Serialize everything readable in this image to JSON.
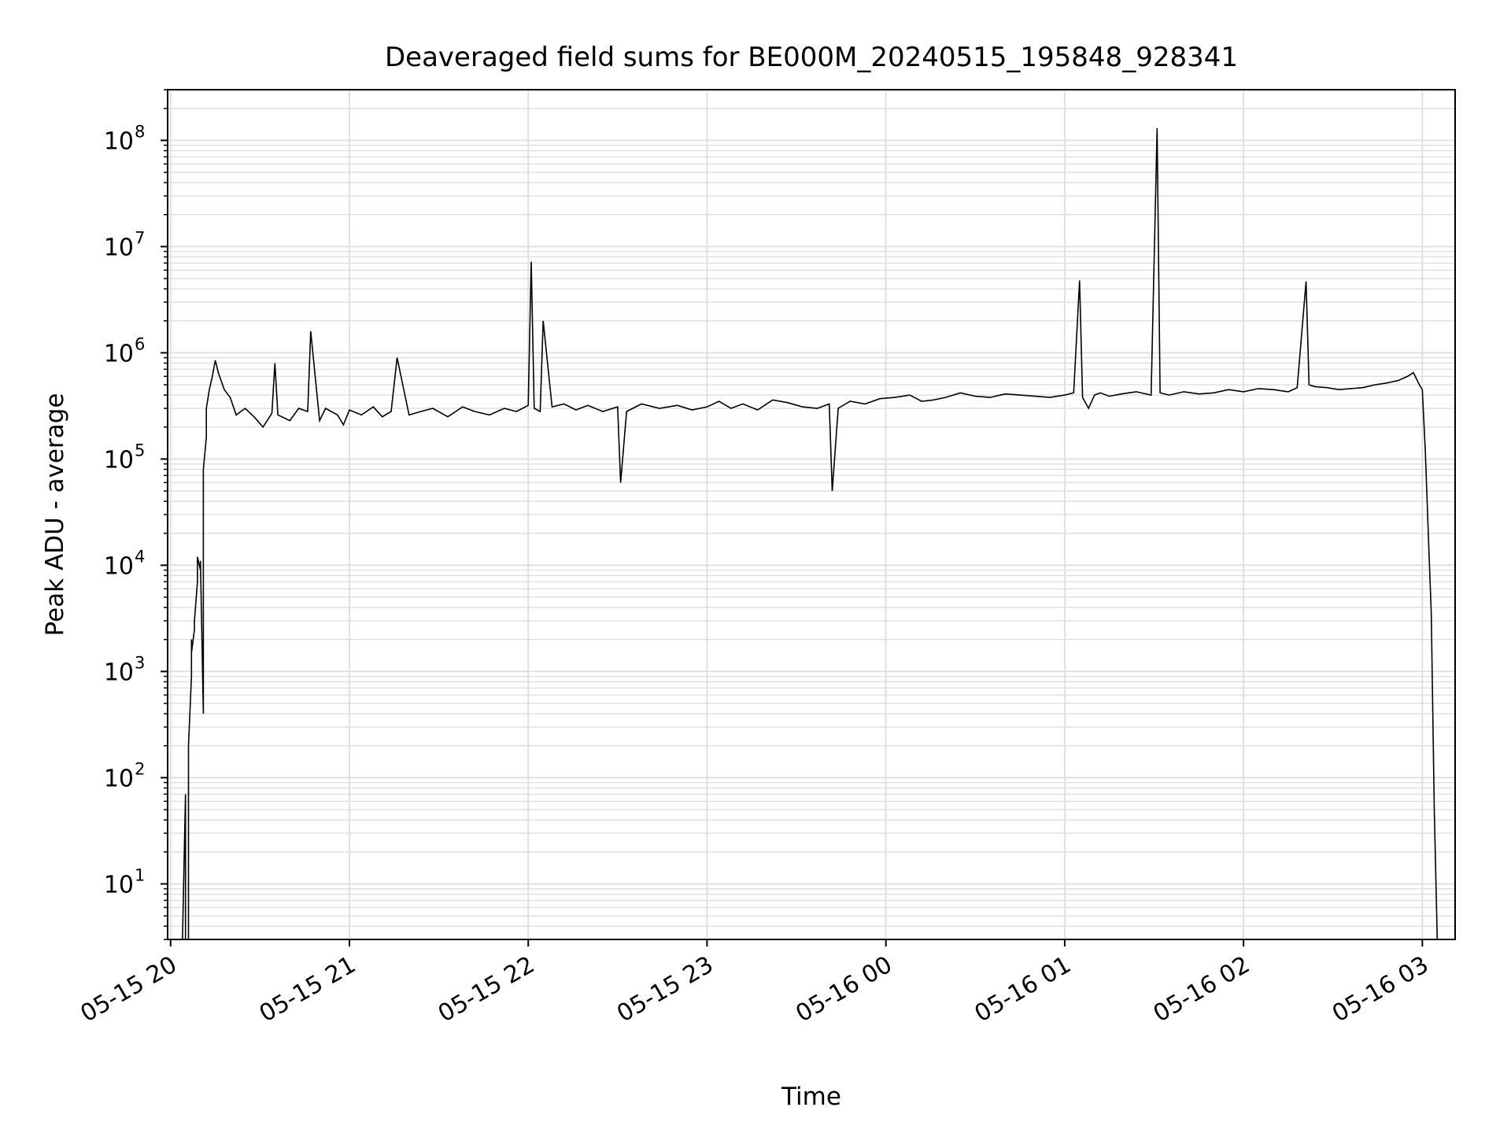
{
  "chart_data": {
    "type": "line",
    "title": "Deaveraged field sums for BE000M_20240515_195848_928341",
    "xlabel": "Time",
    "ylabel": "Peak ADU - average",
    "x_scale": "time",
    "y_scale": "log",
    "xlim": [
      "2024-05-15 19:59",
      "2024-05-16 03:11"
    ],
    "ylim": [
      3,
      300000000
    ],
    "x_ticks": [
      {
        "t": "2024-05-15 20:00",
        "label": "05-15 20"
      },
      {
        "t": "2024-05-15 21:00",
        "label": "05-15 21"
      },
      {
        "t": "2024-05-15 22:00",
        "label": "05-15 22"
      },
      {
        "t": "2024-05-15 23:00",
        "label": "05-15 23"
      },
      {
        "t": "2024-05-16 00:00",
        "label": "05-16 00"
      },
      {
        "t": "2024-05-16 01:00",
        "label": "05-16 01"
      },
      {
        "t": "2024-05-16 02:00",
        "label": "05-16 02"
      },
      {
        "t": "2024-05-16 03:00",
        "label": "05-16 03"
      }
    ],
    "y_ticks": [
      {
        "value": 10,
        "base": "10",
        "exp": "1"
      },
      {
        "value": 100,
        "base": "10",
        "exp": "2"
      },
      {
        "value": 1000,
        "base": "10",
        "exp": "3"
      },
      {
        "value": 10000,
        "base": "10",
        "exp": "4"
      },
      {
        "value": 100000,
        "base": "10",
        "exp": "5"
      },
      {
        "value": 1000000,
        "base": "10",
        "exp": "6"
      },
      {
        "value": 10000000,
        "base": "10",
        "exp": "7"
      },
      {
        "value": 100000000,
        "base": "10",
        "exp": "8"
      }
    ],
    "grid": true,
    "line_color": "#000000",
    "grid_color": "#e0e0e0",
    "series": [
      {
        "x": [
          "2024-05-15 20:04",
          "2024-05-15 20:05",
          "2024-05-15 20:05",
          "2024-05-15 20:06",
          "2024-05-15 20:06",
          "2024-05-15 20:07",
          "2024-05-15 20:07",
          "2024-05-15 20:07",
          "2024-05-15 20:08",
          "2024-05-15 20:08",
          "2024-05-15 20:09",
          "2024-05-15 20:09",
          "2024-05-15 20:10",
          "2024-05-15 20:10",
          "2024-05-15 20:11",
          "2024-05-15 20:11",
          "2024-05-15 20:11",
          "2024-05-15 20:12",
          "2024-05-15 20:12",
          "2024-05-15 20:13",
          "2024-05-15 20:14",
          "2024-05-15 20:15",
          "2024-05-15 20:16",
          "2024-05-15 20:18",
          "2024-05-15 20:20",
          "2024-05-15 20:22",
          "2024-05-15 20:25",
          "2024-05-15 20:28",
          "2024-05-15 20:31",
          "2024-05-15 20:34",
          "2024-05-15 20:35",
          "2024-05-15 20:36",
          "2024-05-15 20:40",
          "2024-05-15 20:43",
          "2024-05-15 20:46",
          "2024-05-15 20:47",
          "2024-05-15 20:50",
          "2024-05-15 20:52",
          "2024-05-15 20:56",
          "2024-05-15 20:58",
          "2024-05-15 21:00",
          "2024-05-15 21:04",
          "2024-05-15 21:08",
          "2024-05-15 21:11",
          "2024-05-15 21:14",
          "2024-05-15 21:16",
          "2024-05-15 21:20",
          "2024-05-15 21:24",
          "2024-05-15 21:28",
          "2024-05-15 21:33",
          "2024-05-15 21:38",
          "2024-05-15 21:42",
          "2024-05-15 21:47",
          "2024-05-15 21:52",
          "2024-05-15 21:56",
          "2024-05-15 22:00",
          "2024-05-15 22:01",
          "2024-05-15 22:02",
          "2024-05-15 22:04",
          "2024-05-15 22:05",
          "2024-05-15 22:08",
          "2024-05-15 22:12",
          "2024-05-15 22:16",
          "2024-05-15 22:20",
          "2024-05-15 22:25",
          "2024-05-15 22:30",
          "2024-05-15 22:31",
          "2024-05-15 22:33",
          "2024-05-15 22:38",
          "2024-05-15 22:44",
          "2024-05-15 22:50",
          "2024-05-15 22:55",
          "2024-05-15 23:00",
          "2024-05-15 23:04",
          "2024-05-15 23:08",
          "2024-05-15 23:12",
          "2024-05-15 23:17",
          "2024-05-15 23:22",
          "2024-05-15 23:27",
          "2024-05-15 23:32",
          "2024-05-15 23:37",
          "2024-05-15 23:41",
          "2024-05-15 23:42",
          "2024-05-15 23:44",
          "2024-05-15 23:48",
          "2024-05-15 23:53",
          "2024-05-15 23:58",
          "2024-05-16 00:03",
          "2024-05-16 00:08",
          "2024-05-16 00:12",
          "2024-05-16 00:16",
          "2024-05-16 00:20",
          "2024-05-16 00:25",
          "2024-05-16 00:30",
          "2024-05-16 00:35",
          "2024-05-16 00:40",
          "2024-05-16 00:45",
          "2024-05-16 00:50",
          "2024-05-16 00:55",
          "2024-05-16 01:00",
          "2024-05-16 01:03",
          "2024-05-16 01:05",
          "2024-05-16 01:06",
          "2024-05-16 01:08",
          "2024-05-16 01:10",
          "2024-05-16 01:12",
          "2024-05-16 01:15",
          "2024-05-16 01:19",
          "2024-05-16 01:24",
          "2024-05-16 01:29",
          "2024-05-16 01:31",
          "2024-05-16 01:32",
          "2024-05-16 01:35",
          "2024-05-16 01:40",
          "2024-05-16 01:45",
          "2024-05-16 01:50",
          "2024-05-16 01:55",
          "2024-05-16 02:00",
          "2024-05-16 02:05",
          "2024-05-16 02:10",
          "2024-05-16 02:15",
          "2024-05-16 02:18",
          "2024-05-16 02:21",
          "2024-05-16 02:22",
          "2024-05-16 02:24",
          "2024-05-16 02:28",
          "2024-05-16 02:32",
          "2024-05-16 02:36",
          "2024-05-16 02:40",
          "2024-05-16 02:44",
          "2024-05-16 02:48",
          "2024-05-16 02:52",
          "2024-05-16 02:55",
          "2024-05-16 02:57",
          "2024-05-16 02:59",
          "2024-05-16 03:00",
          "2024-05-16 03:01",
          "2024-05-16 03:02",
          "2024-05-16 03:03",
          "2024-05-16 03:04",
          "2024-05-16 03:05"
        ],
        "y": [
          3,
          70,
          3,
          3,
          200,
          900,
          2000,
          1500,
          2500,
          3000,
          7000,
          12000,
          9000,
          11000,
          400,
          30000,
          80000,
          160000,
          300000,
          450000,
          600000,
          850000,
          650000,
          450000,
          380000,
          260000,
          300000,
          250000,
          200000,
          270000,
          800000,
          260000,
          230000,
          300000,
          280000,
          1600000,
          230000,
          300000,
          260000,
          210000,
          290000,
          260000,
          310000,
          250000,
          280000,
          900000,
          260000,
          280000,
          300000,
          250000,
          310000,
          280000,
          260000,
          300000,
          280000,
          320000,
          7200000,
          300000,
          280000,
          2000000,
          310000,
          330000,
          290000,
          320000,
          280000,
          310000,
          60000,
          280000,
          330000,
          300000,
          320000,
          290000,
          310000,
          350000,
          300000,
          330000,
          290000,
          360000,
          340000,
          310000,
          300000,
          330000,
          50000,
          300000,
          350000,
          330000,
          370000,
          380000,
          400000,
          350000,
          360000,
          380000,
          420000,
          390000,
          380000,
          410000,
          400000,
          390000,
          380000,
          400000,
          420000,
          4800000,
          380000,
          300000,
          400000,
          420000,
          390000,
          410000,
          430000,
          400000,
          130000000,
          420000,
          400000,
          430000,
          410000,
          420000,
          450000,
          430000,
          460000,
          450000,
          430000,
          470000,
          4700000,
          500000,
          480000,
          470000,
          450000,
          460000,
          470000,
          500000,
          520000,
          550000,
          600000,
          650000,
          500000,
          450000,
          120000,
          20000,
          3500,
          50,
          3
        ]
      }
    ]
  }
}
